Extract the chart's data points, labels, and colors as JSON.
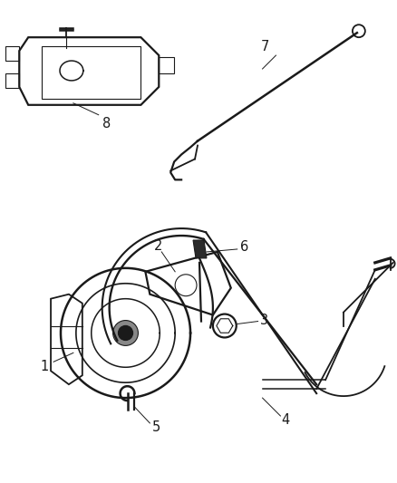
{
  "background_color": "#ffffff",
  "line_color": "#1a1a1a",
  "fig_width": 4.39,
  "fig_height": 5.33,
  "dpi": 100,
  "label_fontsize": 10.5,
  "line_width": 1.3,
  "thin_line": 0.8,
  "thick_line": 1.8
}
